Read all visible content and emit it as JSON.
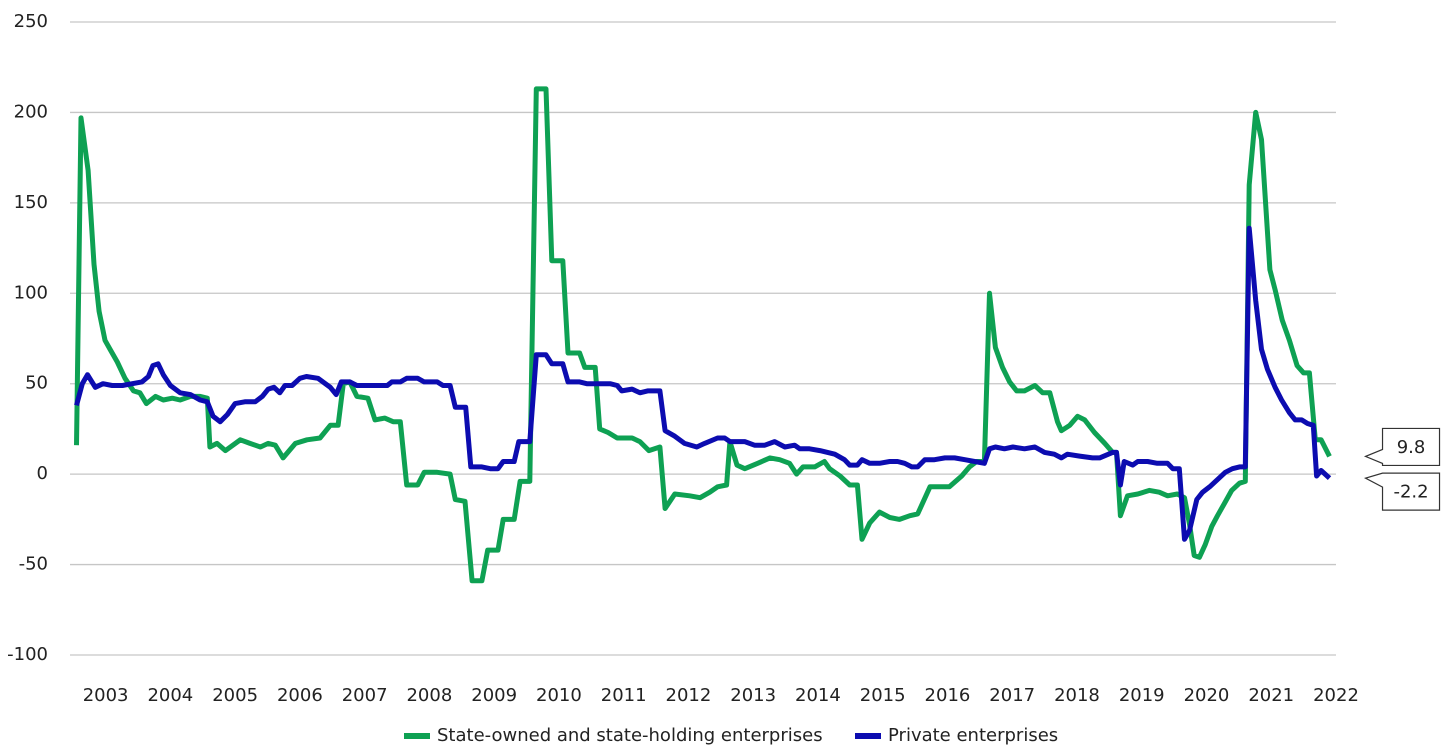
{
  "chart_data": {
    "type": "line",
    "xlim": [
      2002.95,
      2022.5
    ],
    "xticks": [
      {
        "value": 2003.5,
        "label": "2003"
      },
      {
        "value": 2004.5,
        "label": "2004"
      },
      {
        "value": 2005.5,
        "label": "2005"
      },
      {
        "value": 2006.5,
        "label": "2006"
      },
      {
        "value": 2007.5,
        "label": "2007"
      },
      {
        "value": 2008.5,
        "label": "2008"
      },
      {
        "value": 2009.5,
        "label": "2009"
      },
      {
        "value": 2010.5,
        "label": "2010"
      },
      {
        "value": 2011.5,
        "label": "2011"
      },
      {
        "value": 2012.5,
        "label": "2012"
      },
      {
        "value": 2013.5,
        "label": "2013"
      },
      {
        "value": 2014.5,
        "label": "2014"
      },
      {
        "value": 2015.5,
        "label": "2015"
      },
      {
        "value": 2016.5,
        "label": "2016"
      },
      {
        "value": 2017.5,
        "label": "2017"
      },
      {
        "value": 2018.5,
        "label": "2018"
      },
      {
        "value": 2019.5,
        "label": "2019"
      },
      {
        "value": 2020.5,
        "label": "2020"
      },
      {
        "value": 2021.5,
        "label": "2021"
      },
      {
        "value": 2022.5,
        "label": "2022"
      }
    ],
    "ylim": [
      -100,
      250
    ],
    "yticks": [
      -100,
      -50,
      0,
      50,
      100,
      150,
      200,
      250
    ],
    "grid": true,
    "legend": "bottom",
    "series": [
      {
        "name": "State-owned and state-holding enterprises",
        "color": "#0ea153",
        "x": [
          2003.05,
          2003.12,
          2003.23,
          2003.32,
          2003.4,
          2003.49,
          2003.57,
          2003.68,
          2003.8,
          2003.93,
          2004.03,
          2004.13,
          2004.27,
          2004.39,
          2004.53,
          2004.65,
          2004.81,
          2004.96,
          2005.07,
          2005.11,
          2005.22,
          2005.35,
          2005.58,
          2005.73,
          2005.89,
          2006.01,
          2006.12,
          2006.24,
          2006.43,
          2006.61,
          2006.81,
          2006.97,
          2007.09,
          2007.17,
          2007.27,
          2007.38,
          2007.55,
          2007.66,
          2007.81,
          2007.94,
          2008.05,
          2008.15,
          2008.32,
          2008.42,
          2008.62,
          2008.82,
          2008.9,
          2009.05,
          2009.16,
          2009.31,
          2009.4,
          2009.56,
          2009.64,
          2009.81,
          2009.9,
          2010.05,
          2010.15,
          2010.3,
          2010.39,
          2010.56,
          2010.64,
          2010.82,
          2010.9,
          2011.06,
          2011.13,
          2011.26,
          2011.4,
          2011.63,
          2011.75,
          2011.89,
          2012.06,
          2012.14,
          2012.29,
          2012.52,
          2012.68,
          2012.83,
          2012.95,
          2013.09,
          2013.14,
          2013.25,
          2013.37,
          2013.57,
          2013.76,
          2013.91,
          2014.06,
          2014.17,
          2014.27,
          2014.45,
          2014.6,
          2014.68,
          2014.84,
          2014.99,
          2015.11,
          2015.18,
          2015.3,
          2015.45,
          2015.61,
          2015.76,
          2015.92,
          2016.04,
          2016.23,
          2016.38,
          2016.53,
          2016.72,
          2016.84,
          2016.95,
          2017.07,
          2017.15,
          2017.24,
          2017.35,
          2017.46,
          2017.57,
          2017.69,
          2017.85,
          2017.97,
          2018.08,
          2018.2,
          2018.26,
          2018.39,
          2018.51,
          2018.62,
          2018.77,
          2018.93,
          2019.05,
          2019.11,
          2019.17,
          2019.28,
          2019.44,
          2019.62,
          2019.77,
          2019.9,
          2020.05,
          2020.16,
          2020.24,
          2020.31,
          2020.39,
          2020.48,
          2020.58,
          2020.67,
          2020.78,
          2020.89,
          2021.01,
          2021.1,
          2021.16,
          2021.26,
          2021.35,
          2021.48,
          2021.56,
          2021.67,
          2021.78,
          2021.9,
          2022.0,
          2022.09,
          2022.18,
          2022.27,
          2022.4
        ],
        "values": [
          16,
          197,
          168,
          116,
          90,
          74,
          69,
          62,
          53,
          46,
          45,
          39,
          43,
          41,
          42,
          41,
          43,
          43,
          42,
          15,
          17,
          13,
          19,
          17,
          15,
          17,
          16,
          9,
          17,
          19,
          20,
          27,
          27,
          50,
          51,
          43,
          42,
          30,
          31,
          29,
          29,
          -6,
          -6,
          1,
          1,
          0,
          -14,
          -15,
          -59,
          -59,
          -42,
          -42,
          -25,
          -25,
          -4,
          -4,
          213,
          213,
          118,
          118,
          67,
          67,
          59,
          59,
          25,
          23,
          20,
          20,
          18,
          13,
          15,
          -19,
          -11,
          -12,
          -13,
          -10,
          -7,
          -6,
          18,
          5,
          3,
          6,
          9,
          8,
          6,
          0,
          4,
          4,
          7,
          3,
          -1,
          -6,
          -6,
          -36,
          -27,
          -21,
          -24,
          -25,
          -23,
          -22,
          -7,
          -7,
          -7,
          -1,
          4,
          7,
          7,
          100,
          70,
          59,
          51,
          46,
          46,
          49,
          45,
          45,
          29,
          24,
          27,
          32,
          30,
          23,
          17,
          12,
          12,
          -23,
          -12,
          -11,
          -9,
          -10,
          -12,
          -11,
          -13,
          -28,
          -45,
          -46,
          -39,
          -29,
          -23,
          -16,
          -9,
          -5,
          -4,
          160,
          200,
          185,
          113,
          102,
          85,
          74,
          60,
          56,
          56,
          19,
          19,
          9.8
        ]
      },
      {
        "name": "Private enterprises",
        "color": "#0c0cb0",
        "x": [
          2003.05,
          2003.14,
          2003.22,
          2003.34,
          2003.46,
          2003.6,
          2003.76,
          2003.91,
          2004.06,
          2004.16,
          2004.23,
          2004.31,
          2004.39,
          2004.5,
          2004.65,
          2004.81,
          2004.96,
          2005.07,
          2005.16,
          2005.27,
          2005.38,
          2005.5,
          2005.65,
          2005.81,
          2005.92,
          2006.01,
          2006.1,
          2006.19,
          2006.27,
          2006.38,
          2006.5,
          2006.6,
          2006.78,
          2006.97,
          2007.06,
          2007.14,
          2007.27,
          2007.38,
          2007.58,
          2007.85,
          2007.92,
          2008.05,
          2008.15,
          2008.32,
          2008.42,
          2008.62,
          2008.71,
          2008.82,
          2008.9,
          2009.06,
          2009.14,
          2009.31,
          2009.44,
          2009.56,
          2009.64,
          2009.81,
          2009.88,
          2010.05,
          2010.15,
          2010.3,
          2010.39,
          2010.56,
          2010.64,
          2010.82,
          2010.93,
          2011.13,
          2011.29,
          2011.4,
          2011.47,
          2011.63,
          2011.75,
          2011.87,
          2012.06,
          2012.14,
          2012.29,
          2012.44,
          2012.63,
          2012.75,
          2012.95,
          2013.06,
          2013.14,
          2013.37,
          2013.52,
          2013.68,
          2013.83,
          2013.99,
          2014.14,
          2014.22,
          2014.37,
          2014.53,
          2014.76,
          2014.91,
          2014.99,
          2015.11,
          2015.18,
          2015.3,
          2015.45,
          2015.61,
          2015.73,
          2015.84,
          2015.95,
          2016.04,
          2016.15,
          2016.3,
          2016.46,
          2016.61,
          2016.77,
          2016.92,
          2017.07,
          2017.15,
          2017.24,
          2017.38,
          2017.51,
          2017.69,
          2017.85,
          2018.0,
          2018.15,
          2018.26,
          2018.35,
          2018.54,
          2018.74,
          2018.85,
          2019.05,
          2019.11,
          2019.17,
          2019.23,
          2019.36,
          2019.44,
          2019.59,
          2019.74,
          2019.9,
          2019.98,
          2020.08,
          2020.16,
          2020.24,
          2020.35,
          2020.44,
          2020.55,
          2020.67,
          2020.79,
          2020.9,
          2021.01,
          2021.1,
          2021.16,
          2021.26,
          2021.35,
          2021.44,
          2021.56,
          2021.66,
          2021.78,
          2021.87,
          2021.97,
          2022.06,
          2022.15,
          2022.2,
          2022.27,
          2022.4
        ],
        "values": [
          38,
          50,
          55,
          48,
          50,
          49,
          49,
          50,
          51,
          54,
          60,
          61,
          55,
          49,
          45,
          44,
          41,
          40,
          32,
          29,
          33,
          39,
          40,
          40,
          43,
          47,
          48,
          45,
          49,
          49,
          53,
          54,
          53,
          48,
          44,
          51,
          51,
          49,
          49,
          49,
          51,
          51,
          53,
          53,
          51,
          51,
          49,
          49,
          37,
          37,
          4,
          4,
          3,
          3,
          7,
          7,
          18,
          18,
          66,
          66,
          61,
          61,
          51,
          51,
          50,
          50,
          50,
          49,
          46,
          47,
          45,
          46,
          46,
          24,
          21,
          17,
          15,
          17,
          20,
          20,
          18,
          18,
          16,
          16,
          18,
          15,
          16,
          14,
          14,
          13,
          11,
          8,
          5,
          5,
          8,
          6,
          6,
          7,
          7,
          6,
          4,
          4,
          8,
          8,
          9,
          9,
          8,
          7,
          6,
          14,
          15,
          14,
          15,
          14,
          15,
          12,
          11,
          9,
          11,
          10,
          9,
          9,
          12,
          12,
          -6,
          7,
          5,
          7,
          7,
          6,
          6,
          3,
          3,
          -36,
          -31,
          -14,
          -10,
          -7,
          -3,
          1,
          3,
          4,
          4,
          136,
          96,
          69,
          58,
          48,
          41,
          34,
          30,
          30,
          28,
          27,
          -1,
          2,
          -2.2
        ]
      }
    ]
  }
}
